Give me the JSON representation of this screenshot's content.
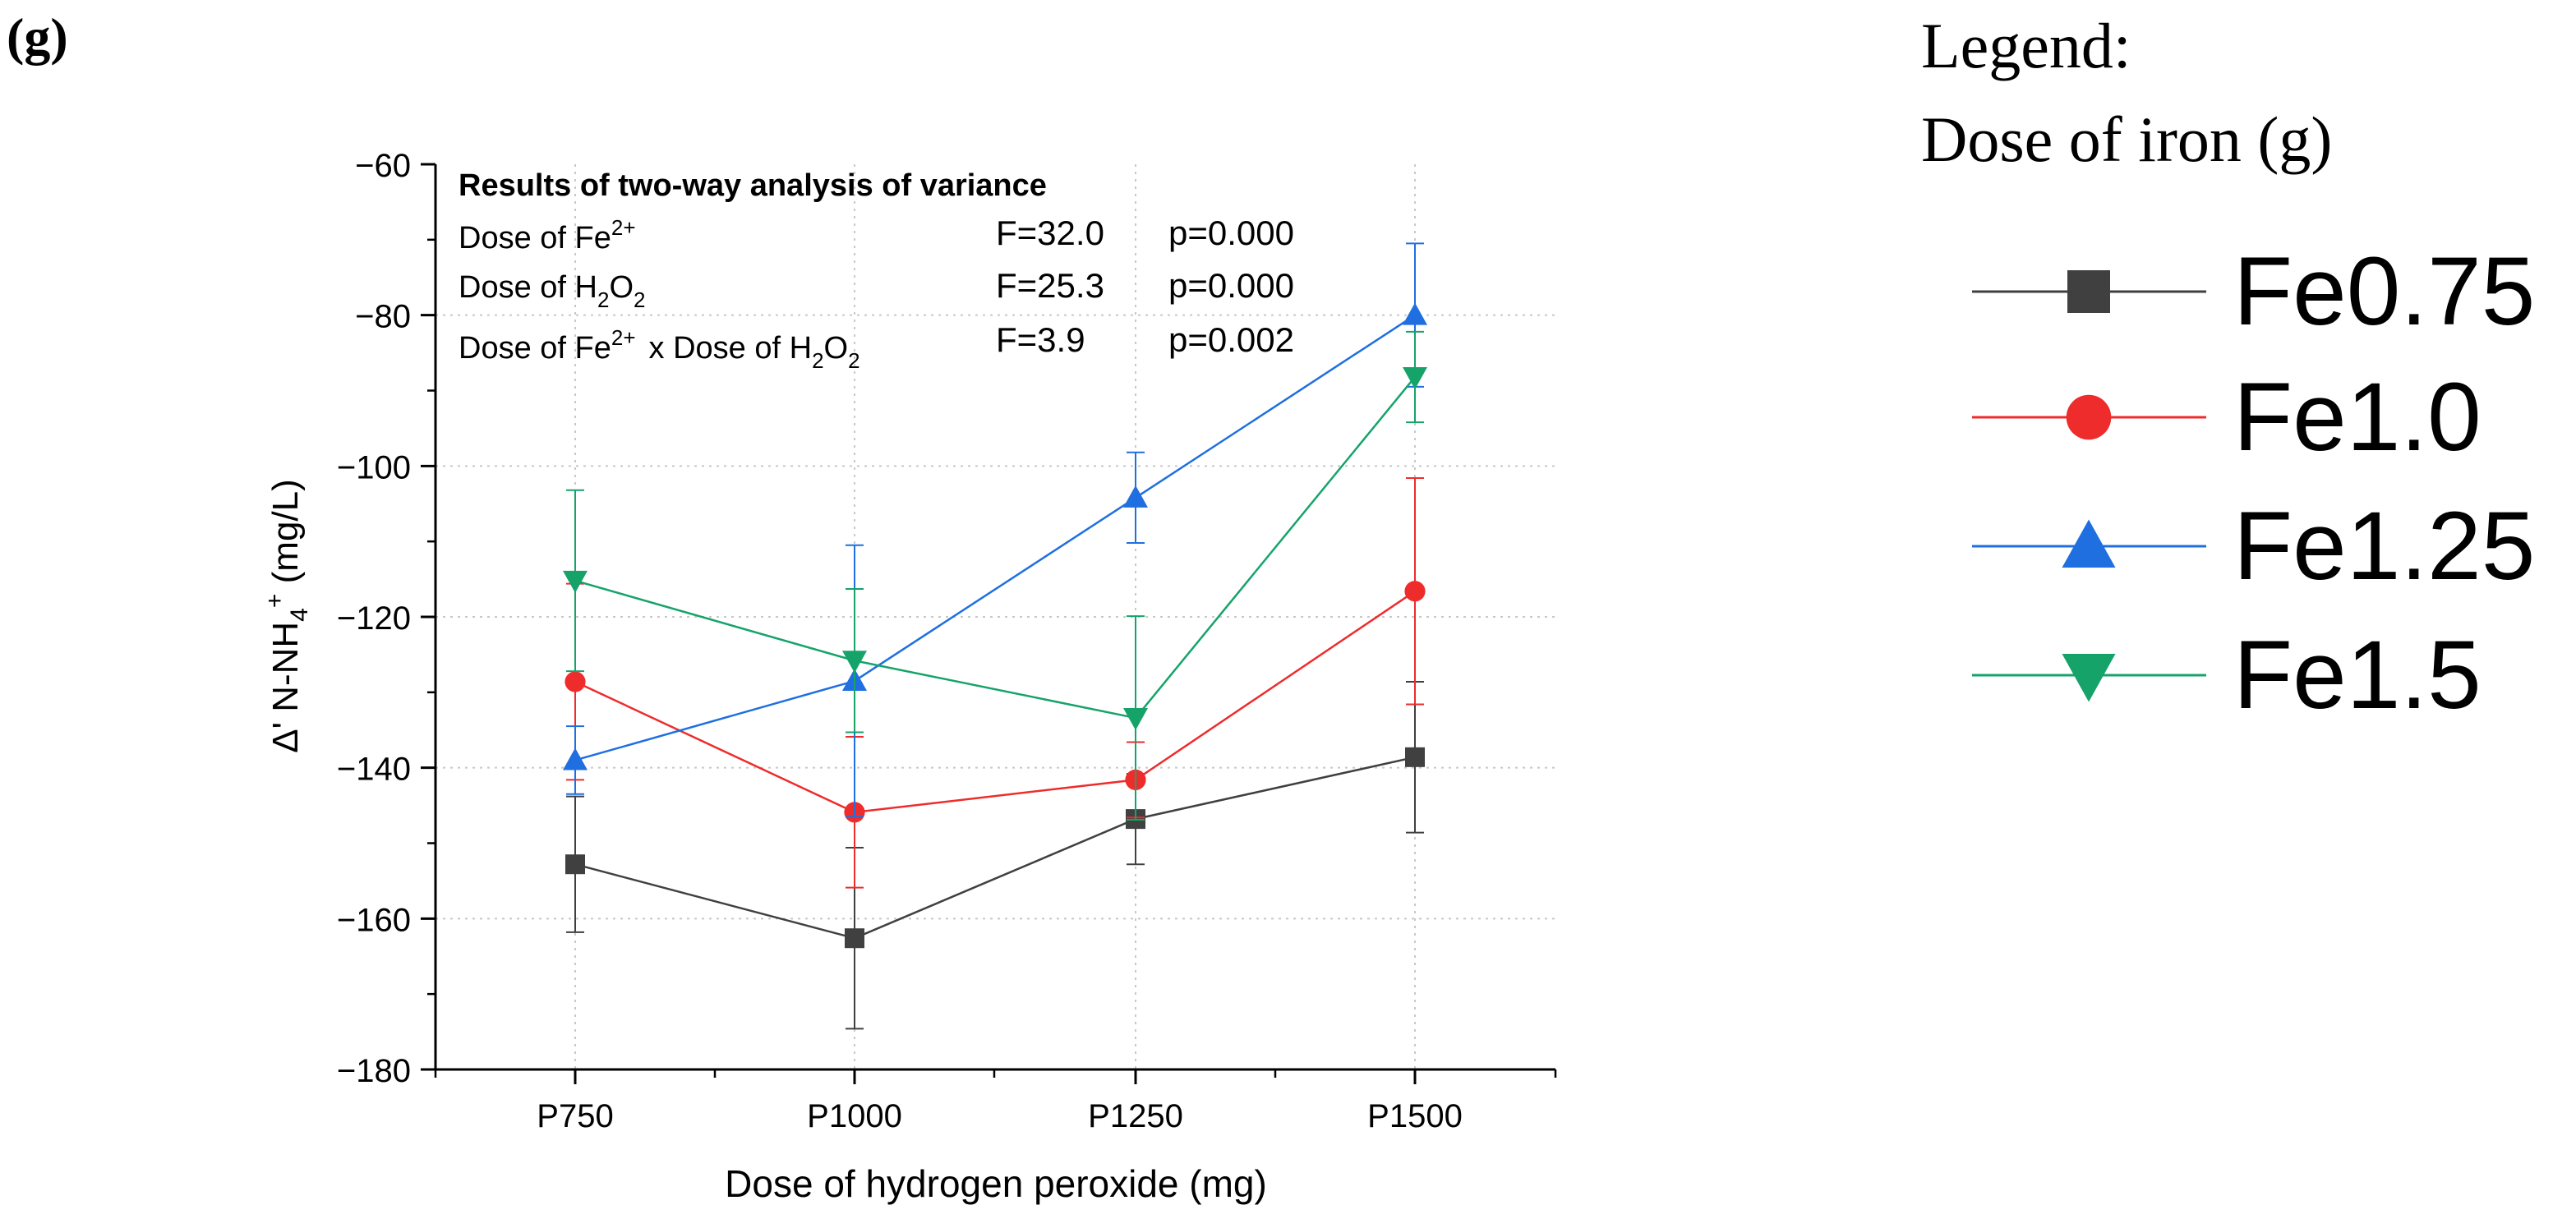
{
  "panel_label": "(g)",
  "legend": {
    "heading": "Legend:",
    "subheading": "Dose of iron (g)"
  },
  "anova": {
    "title": "Results of two-way analysis of variance",
    "rows": [
      {
        "label": "Dose of Fe",
        "sup": "2+",
        "f": "F=32.0",
        "p": "p=0.000"
      },
      {
        "label": "Dose of H",
        "sub1": "2",
        "mid": "O",
        "sub2": "2",
        "f": "F=25.3",
        "p": "p=0.000"
      },
      {
        "label": "Dose of Fe",
        "sup": "2+",
        "cross": "x  Dose of H",
        "sub1": "2",
        "mid": "O",
        "sub2": "2",
        "f": "F=3.9",
        "p": "p=0.002"
      }
    ]
  },
  "chart_data": {
    "type": "line",
    "title": "",
    "xlabel": "Dose of hydrogen peroxide (mg)",
    "ylabel": {
      "prefix": "Δ' N-NH",
      "sub": "4",
      "sup": "+",
      "suffix": " (mg/L)"
    },
    "categories": [
      "P750",
      "P1000",
      "P1250",
      "P1500"
    ],
    "ylim": [
      -180,
      -60
    ],
    "yticks": [
      -60,
      -80,
      -100,
      -120,
      -140,
      -160,
      -180
    ],
    "ytick_labels": [
      "−60",
      "−80",
      "−100",
      "−120",
      "−140",
      "−160",
      "−180"
    ],
    "grid": true,
    "legend_position": "right, outside",
    "series": [
      {
        "name": "Fe0.75",
        "color": "#404040",
        "marker": "square",
        "values": [
          -152.8,
          -162.6,
          -146.8,
          -138.6
        ],
        "errors": [
          9.0,
          12.0,
          6.0,
          10.0
        ]
      },
      {
        "name": "Fe1.0",
        "color": "#ee2c2c",
        "marker": "circle",
        "values": [
          -128.6,
          -145.9,
          -141.6,
          -116.6
        ],
        "errors": [
          13.0,
          10.0,
          5.0,
          15.0
        ]
      },
      {
        "name": "Fe1.25",
        "color": "#1f6fe0",
        "marker": "triangle-up",
        "values": [
          -139.0,
          -128.5,
          -104.2,
          -80.0
        ],
        "errors": [
          4.5,
          18.0,
          6.0,
          9.5
        ]
      },
      {
        "name": "Fe1.5",
        "color": "#16a36a",
        "marker": "triangle-down",
        "values": [
          -115.2,
          -125.8,
          -133.4,
          -88.2
        ],
        "errors": [
          12.0,
          9.5,
          13.5,
          6.0
        ]
      }
    ]
  }
}
